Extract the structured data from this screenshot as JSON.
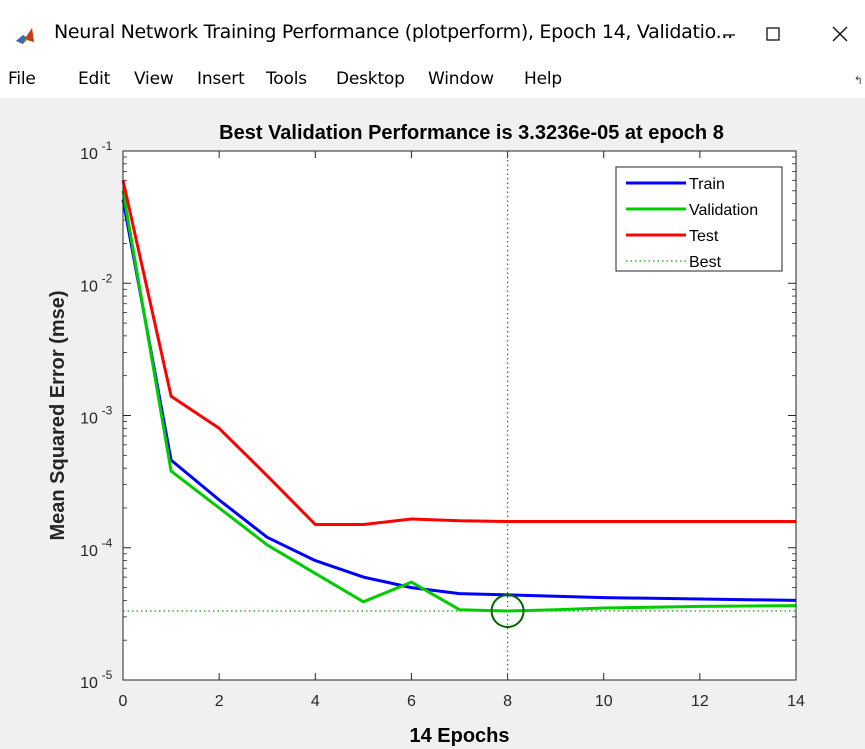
{
  "window": {
    "title": "Neural Network Training Performance (plotperform), Epoch 14, Validatio...",
    "app_icon": "matlab-icon",
    "controls": [
      "minimize-icon",
      "maximize-icon",
      "close-icon"
    ]
  },
  "menu": {
    "items": [
      "File",
      "Edit",
      "View",
      "Insert",
      "Tools",
      "Desktop",
      "Window",
      "Help"
    ]
  },
  "chart_data": {
    "type": "line",
    "title": "Best Validation Performance is 3.3236e-05 at epoch 8",
    "xlabel": "14 Epochs",
    "ylabel": "Mean Squared Error  (mse)",
    "yscale": "log",
    "xlim": [
      0,
      14
    ],
    "ylim": [
      1e-05,
      0.1
    ],
    "xticks": [
      "0",
      "2",
      "4",
      "6",
      "8",
      "10",
      "12",
      "14"
    ],
    "yticks": [
      {
        "base": "10",
        "exp": "-1"
      },
      {
        "base": "10",
        "exp": "-2"
      },
      {
        "base": "10",
        "exp": "-3"
      },
      {
        "base": "10",
        "exp": "-4"
      },
      {
        "base": "10",
        "exp": "-5"
      }
    ],
    "legend_position": "top-right",
    "series": [
      {
        "name": "Train",
        "color": "#0000ff",
        "x": [
          0,
          1,
          2,
          3,
          4,
          5,
          6,
          7,
          8,
          9,
          10,
          11,
          12,
          13,
          14
        ],
        "y": [
          0.043,
          0.00046,
          0.00023,
          0.00012,
          8e-05,
          6e-05,
          5e-05,
          4.5e-05,
          4.4e-05,
          4.3e-05,
          4.2e-05,
          4.15e-05,
          4.1e-05,
          4.05e-05,
          4e-05
        ]
      },
      {
        "name": "Validation",
        "color": "#00cc00",
        "x": [
          0,
          1,
          2,
          3,
          4,
          5,
          6,
          7,
          8,
          9,
          10,
          11,
          12,
          13,
          14
        ],
        "y": [
          0.05,
          0.00038,
          0.0002,
          0.000105,
          6.4e-05,
          3.9e-05,
          5.5e-05,
          3.4e-05,
          3.3236e-05,
          3.4e-05,
          3.5e-05,
          3.55e-05,
          3.6e-05,
          3.63e-05,
          3.65e-05
        ]
      },
      {
        "name": "Test",
        "color": "#ff0000",
        "x": [
          0,
          1,
          2,
          3,
          4,
          5,
          6,
          7,
          8,
          9,
          10,
          11,
          12,
          13,
          14
        ],
        "y": [
          0.06,
          0.0014,
          0.0008,
          0.00035,
          0.00015,
          0.00015,
          0.000165,
          0.00016,
          0.000158,
          0.000158,
          0.000158,
          0.000158,
          0.000158,
          0.000158,
          0.000158
        ]
      },
      {
        "name": "Best",
        "color": "#00aa00",
        "style": "dotted"
      }
    ],
    "best": {
      "epoch": 8,
      "value": 3.3236e-05
    },
    "grid": false
  }
}
